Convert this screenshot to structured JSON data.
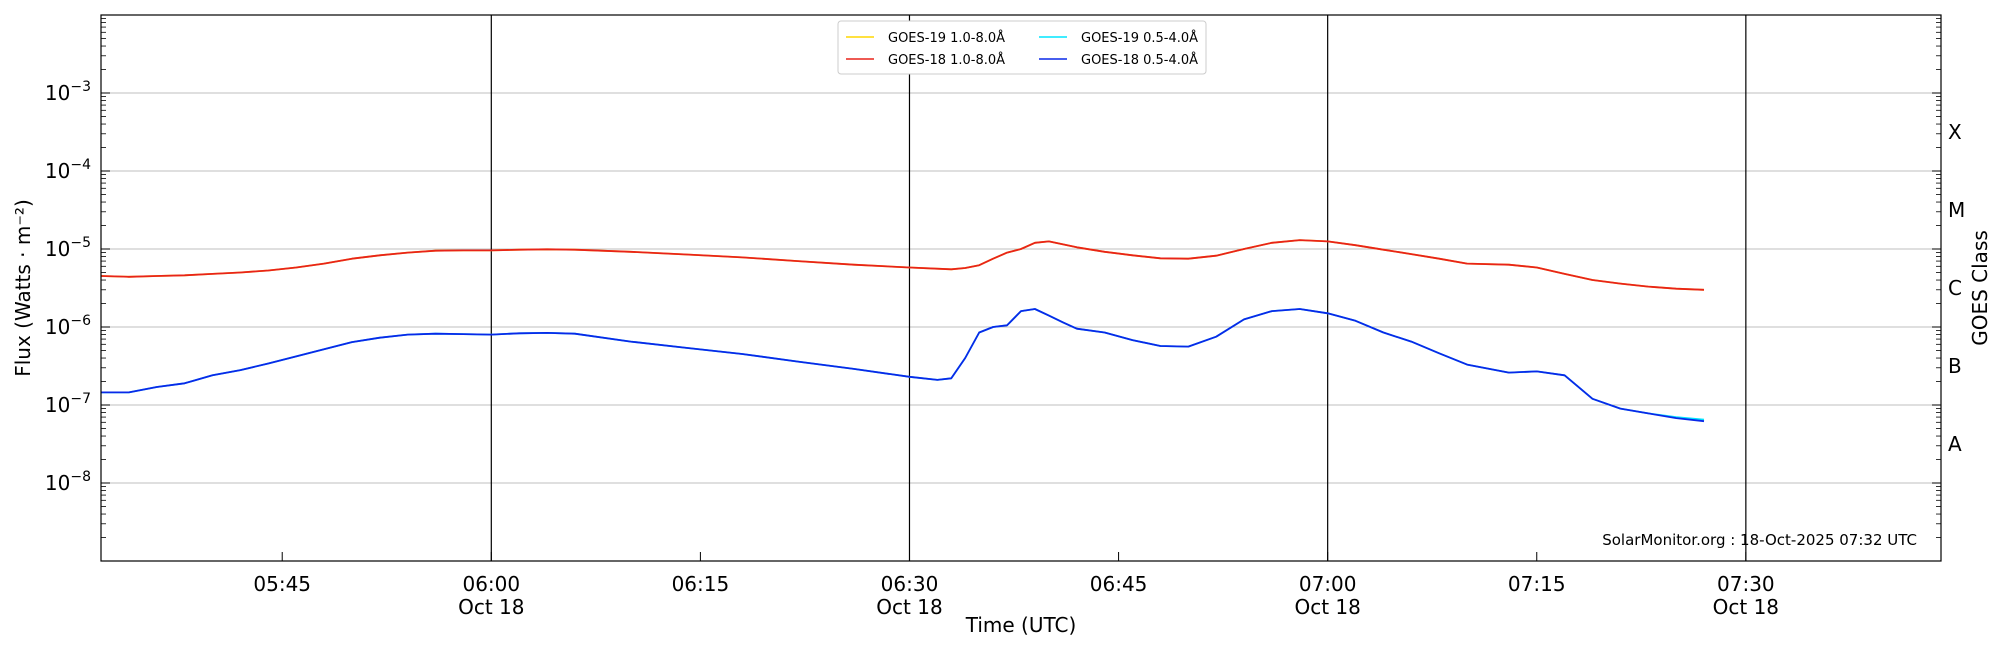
{
  "chart_data": {
    "type": "line",
    "title": "",
    "xlabel": "Time (UTC)",
    "ylabel": "Flux (Watts · m⁻²)",
    "y2label": "GOES Class",
    "yscale": "log",
    "ylim": [
      1e-09,
      0.01
    ],
    "xlim": [
      "05:32",
      "07:44"
    ],
    "grid": "horizontal lines at each y decade; vertical lines every 30 minutes",
    "legend_placement": "top-center",
    "watermark": "SolarMonitor.org : 18-Oct-2025 07:32 UTC",
    "x_ticks": [
      {
        "time": "05:45",
        "label": "05:45",
        "date": ""
      },
      {
        "time": "06:00",
        "label": "06:00",
        "date": "Oct 18"
      },
      {
        "time": "06:15",
        "label": "06:15",
        "date": ""
      },
      {
        "time": "06:30",
        "label": "06:30",
        "date": "Oct 18"
      },
      {
        "time": "06:45",
        "label": "06:45",
        "date": ""
      },
      {
        "time": "07:00",
        "label": "07:00",
        "date": "Oct 18"
      },
      {
        "time": "07:15",
        "label": "07:15",
        "date": ""
      },
      {
        "time": "07:30",
        "label": "07:30",
        "date": "Oct 18"
      }
    ],
    "y_ticks": [
      {
        "value": 1e-08,
        "base": "10",
        "exp": "−8"
      },
      {
        "value": 1e-07,
        "base": "10",
        "exp": "−7"
      },
      {
        "value": 1e-06,
        "base": "10",
        "exp": "−6"
      },
      {
        "value": 1e-05,
        "base": "10",
        "exp": "−5"
      },
      {
        "value": 0.0001,
        "base": "10",
        "exp": "−4"
      },
      {
        "value": 0.001,
        "base": "10",
        "exp": "−3"
      }
    ],
    "goes_classes": [
      {
        "label": "A",
        "value": 3.16e-08
      },
      {
        "label": "B",
        "value": 3.16e-07
      },
      {
        "label": "C",
        "value": 3.16e-06
      },
      {
        "label": "M",
        "value": 3.16e-05
      },
      {
        "label": "X",
        "value": 0.000316
      }
    ],
    "series": [
      {
        "name": "GOES-19 1.0-8.0Å",
        "color": "#ffd700",
        "x": [
          "05:32",
          "05:34",
          "05:36",
          "05:38",
          "05:40",
          "05:42",
          "05:44",
          "05:46",
          "05:48",
          "05:50",
          "05:52",
          "05:54",
          "05:56",
          "05:58",
          "06:00",
          "06:02",
          "06:04",
          "06:06",
          "06:10",
          "06:14",
          "06:18",
          "06:22",
          "06:26",
          "06:30",
          "06:33",
          "06:34",
          "06:35",
          "06:36",
          "06:37",
          "06:38",
          "06:39",
          "06:40",
          "06:42",
          "06:44",
          "06:46",
          "06:48",
          "06:50",
          "06:52",
          "06:54",
          "06:56",
          "06:58",
          "07:00",
          "07:02",
          "07:04",
          "07:06",
          "07:08",
          "07:10",
          "07:13",
          "07:15",
          "07:17",
          "07:19",
          "07:21",
          "07:23",
          "07:25",
          "07:27"
        ],
        "y": [
          4.5e-06,
          4.4e-06,
          4.5e-06,
          4.6e-06,
          4.8e-06,
          5e-06,
          5.3e-06,
          5.8e-06,
          6.5e-06,
          7.5e-06,
          8.3e-06,
          9e-06,
          9.5e-06,
          9.6e-06,
          9.6e-06,
          9.8e-06,
          9.9e-06,
          9.8e-06,
          9.2e-06,
          8.5e-06,
          7.8e-06,
          7e-06,
          6.3e-06,
          5.8e-06,
          5.5e-06,
          5.7e-06,
          6.2e-06,
          7.5e-06,
          9e-06,
          1e-05,
          1.2e-05,
          1.25e-05,
          1.05e-05,
          9.2e-06,
          8.3e-06,
          7.6e-06,
          7.5e-06,
          8.2e-06,
          1e-05,
          1.2e-05,
          1.3e-05,
          1.25e-05,
          1.12e-05,
          9.8e-06,
          8.6e-06,
          7.5e-06,
          6.5e-06,
          6.3e-06,
          5.8e-06,
          4.8e-06,
          4e-06,
          3.6e-06,
          3.3e-06,
          3.1e-06,
          3e-06
        ]
      },
      {
        "name": "GOES-18 1.0-8.0Å",
        "color": "#e8231a",
        "x": [
          "05:32",
          "05:34",
          "05:36",
          "05:38",
          "05:40",
          "05:42",
          "05:44",
          "05:46",
          "05:48",
          "05:50",
          "05:52",
          "05:54",
          "05:56",
          "05:58",
          "06:00",
          "06:02",
          "06:04",
          "06:06",
          "06:10",
          "06:14",
          "06:18",
          "06:22",
          "06:26",
          "06:30",
          "06:33",
          "06:34",
          "06:35",
          "06:36",
          "06:37",
          "06:38",
          "06:39",
          "06:40",
          "06:42",
          "06:44",
          "06:46",
          "06:48",
          "06:50",
          "06:52",
          "06:54",
          "06:56",
          "06:58",
          "07:00",
          "07:02",
          "07:04",
          "07:06",
          "07:08",
          "07:10",
          "07:13",
          "07:15",
          "07:17",
          "07:19",
          "07:21",
          "07:23",
          "07:25",
          "07:27"
        ],
        "y": [
          4.5e-06,
          4.4e-06,
          4.5e-06,
          4.6e-06,
          4.8e-06,
          5e-06,
          5.3e-06,
          5.8e-06,
          6.5e-06,
          7.5e-06,
          8.3e-06,
          9e-06,
          9.5e-06,
          9.6e-06,
          9.6e-06,
          9.8e-06,
          9.9e-06,
          9.8e-06,
          9.2e-06,
          8.5e-06,
          7.8e-06,
          7e-06,
          6.3e-06,
          5.8e-06,
          5.5e-06,
          5.7e-06,
          6.2e-06,
          7.5e-06,
          9e-06,
          1e-05,
          1.2e-05,
          1.25e-05,
          1.05e-05,
          9.2e-06,
          8.3e-06,
          7.6e-06,
          7.5e-06,
          8.2e-06,
          1e-05,
          1.2e-05,
          1.3e-05,
          1.25e-05,
          1.12e-05,
          9.8e-06,
          8.6e-06,
          7.5e-06,
          6.5e-06,
          6.3e-06,
          5.8e-06,
          4.8e-06,
          4e-06,
          3.6e-06,
          3.3e-06,
          3.1e-06,
          3e-06
        ]
      },
      {
        "name": "GOES-19 0.5-4.0Å",
        "color": "#00e5ff",
        "x": [
          "05:32",
          "05:34",
          "05:36",
          "05:38",
          "05:40",
          "05:42",
          "05:44",
          "05:46",
          "05:48",
          "05:50",
          "05:52",
          "05:54",
          "05:56",
          "05:58",
          "06:00",
          "06:02",
          "06:04",
          "06:06",
          "06:10",
          "06:14",
          "06:18",
          "06:22",
          "06:26",
          "06:30",
          "06:32",
          "06:33",
          "06:34",
          "06:35",
          "06:36",
          "06:37",
          "06:38",
          "06:39",
          "06:40",
          "06:41",
          "06:42",
          "06:44",
          "06:46",
          "06:48",
          "06:50",
          "06:52",
          "06:54",
          "06:56",
          "06:58",
          "07:00",
          "07:02",
          "07:04",
          "07:06",
          "07:08",
          "07:10",
          "07:13",
          "07:15",
          "07:17",
          "07:19",
          "07:21",
          "07:23",
          "07:25",
          "07:27"
        ],
        "y": [
          1.45e-07,
          1.45e-07,
          1.7e-07,
          1.9e-07,
          2.4e-07,
          2.8e-07,
          3.4e-07,
          4.2e-07,
          5.2e-07,
          6.4e-07,
          7.3e-07,
          8e-07,
          8.2e-07,
          8.1e-07,
          8e-07,
          8.3e-07,
          8.4e-07,
          8.2e-07,
          6.5e-07,
          5.4e-07,
          4.5e-07,
          3.6e-07,
          2.9e-07,
          2.3e-07,
          2.1e-07,
          2.2e-07,
          4e-07,
          8.5e-07,
          1e-06,
          1.05e-06,
          1.6e-06,
          1.7e-06,
          1.4e-06,
          1.15e-06,
          9.5e-07,
          8.5e-07,
          6.8e-07,
          5.7e-07,
          5.6e-07,
          7.5e-07,
          1.25e-06,
          1.6e-06,
          1.7e-06,
          1.5e-06,
          1.2e-06,
          8.5e-07,
          6.5e-07,
          4.6e-07,
          3.3e-07,
          2.6e-07,
          2.7e-07,
          2.4e-07,
          1.2e-07,
          9e-08,
          7.8e-08,
          7e-08,
          6.5e-08
        ]
      },
      {
        "name": "GOES-18 0.5-4.0Å",
        "color": "#0a28e8",
        "x": [
          "05:32",
          "05:34",
          "05:36",
          "05:38",
          "05:40",
          "05:42",
          "05:44",
          "05:46",
          "05:48",
          "05:50",
          "05:52",
          "05:54",
          "05:56",
          "05:58",
          "06:00",
          "06:02",
          "06:04",
          "06:06",
          "06:10",
          "06:14",
          "06:18",
          "06:22",
          "06:26",
          "06:30",
          "06:32",
          "06:33",
          "06:34",
          "06:35",
          "06:36",
          "06:37",
          "06:38",
          "06:39",
          "06:40",
          "06:41",
          "06:42",
          "06:44",
          "06:46",
          "06:48",
          "06:50",
          "06:52",
          "06:54",
          "06:56",
          "06:58",
          "07:00",
          "07:02",
          "07:04",
          "07:06",
          "07:08",
          "07:10",
          "07:13",
          "07:15",
          "07:17",
          "07:19",
          "07:21",
          "07:23",
          "07:25",
          "07:27"
        ],
        "y": [
          1.45e-07,
          1.45e-07,
          1.7e-07,
          1.9e-07,
          2.4e-07,
          2.8e-07,
          3.4e-07,
          4.2e-07,
          5.2e-07,
          6.4e-07,
          7.3e-07,
          8e-07,
          8.2e-07,
          8.1e-07,
          8e-07,
          8.3e-07,
          8.4e-07,
          8.2e-07,
          6.5e-07,
          5.4e-07,
          4.5e-07,
          3.6e-07,
          2.9e-07,
          2.3e-07,
          2.1e-07,
          2.2e-07,
          4e-07,
          8.5e-07,
          1e-06,
          1.05e-06,
          1.6e-06,
          1.7e-06,
          1.4e-06,
          1.15e-06,
          9.5e-07,
          8.5e-07,
          6.8e-07,
          5.7e-07,
          5.6e-07,
          7.5e-07,
          1.25e-06,
          1.6e-06,
          1.7e-06,
          1.5e-06,
          1.2e-06,
          8.5e-07,
          6.5e-07,
          4.6e-07,
          3.3e-07,
          2.6e-07,
          2.7e-07,
          2.4e-07,
          1.2e-07,
          9e-08,
          7.8e-08,
          6.8e-08,
          6.2e-08
        ]
      }
    ]
  }
}
